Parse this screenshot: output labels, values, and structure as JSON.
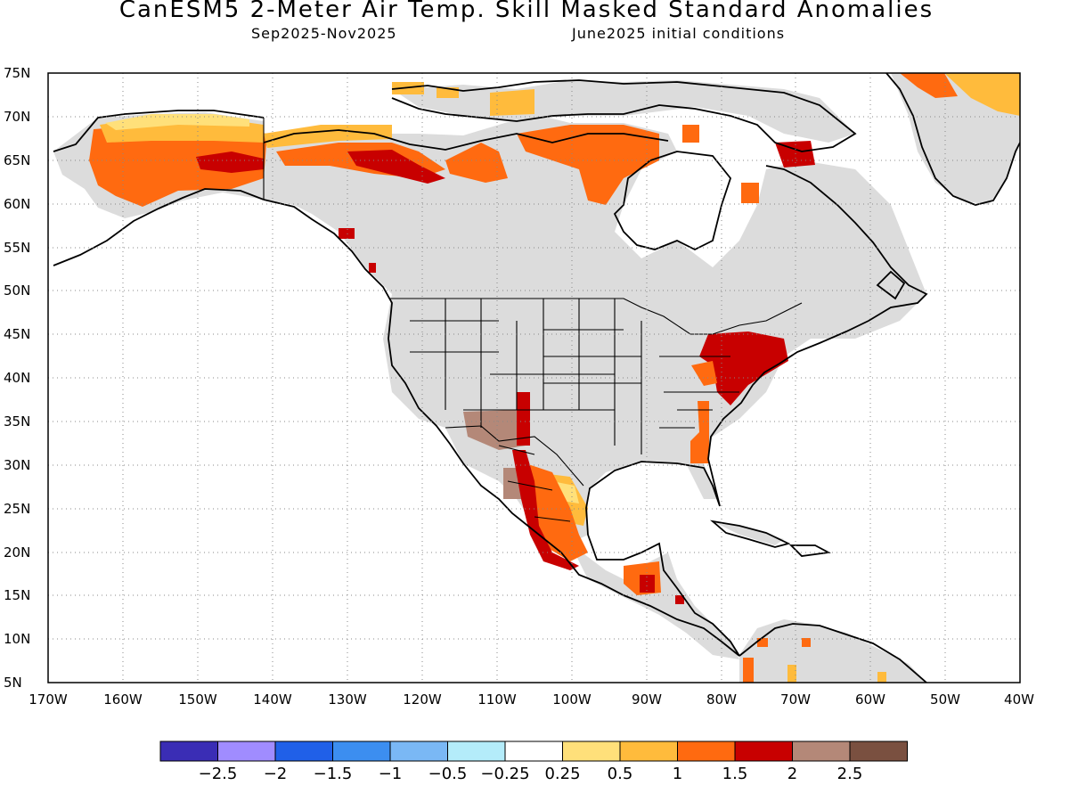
{
  "title": "CanESM5 2-Meter Air Temp. Skill Masked Standard Anomalies",
  "subtitle_left": "Sep2025-Nov2025",
  "subtitle_right": "June2025 initial conditions",
  "map": {
    "lon_range": [
      -170,
      -40
    ],
    "lat_range": [
      5,
      75
    ],
    "lon_ticks": [
      "170W",
      "160W",
      "150W",
      "140W",
      "130W",
      "120W",
      "110W",
      "100W",
      "90W",
      "80W",
      "70W",
      "60W",
      "50W",
      "40W"
    ],
    "lat_ticks": [
      "75N",
      "70N",
      "65N",
      "60N",
      "55N",
      "50N",
      "45N",
      "40N",
      "35N",
      "30N",
      "25N",
      "20N",
      "15N",
      "10N",
      "5N"
    ],
    "grid": true,
    "background_land_color": "#dcdcdc"
  },
  "colorbar": {
    "colors": [
      "#3a2db5",
      "#a08cff",
      "#2060e8",
      "#3c8ef0",
      "#7ab8f5",
      "#b4ecfa",
      "#ffffff",
      "#ffe07a",
      "#ffbb3c",
      "#ff6a10",
      "#c80000",
      "#b48878",
      "#7a5040"
    ],
    "tick_labels": [
      "-2.5",
      "-2",
      "-1.5",
      "-1",
      "-0.5",
      "-0.25",
      "0.25",
      "0.5",
      "1",
      "1.5",
      "2",
      "2.5"
    ]
  },
  "chart_data": {
    "type": "heatmap",
    "title": "CanESM5 2-Meter Air Temp. Skill Masked Standard Anomalies",
    "period": "Sep2025-Nov2025",
    "initial_conditions": "June2025 initial conditions",
    "color_scale_breaks": [
      -2.5,
      -2,
      -1.5,
      -1,
      -0.5,
      -0.25,
      0.25,
      0.5,
      1,
      1.5,
      2,
      2.5
    ],
    "regions": [
      {
        "region": "Alaska interior",
        "anomaly": 1.5
      },
      {
        "region": "Alaska central core",
        "anomaly": 2.0
      },
      {
        "region": "Northern Alaska coast",
        "anomaly": 0.5
      },
      {
        "region": "Yukon / NW Territories",
        "anomaly": 1.0
      },
      {
        "region": "Northern NW Territories",
        "anomaly": 2.0
      },
      {
        "region": "Nunavut / Hudson Bay north",
        "anomaly": 1.5
      },
      {
        "region": "Baffin Island",
        "anomaly": 2.0
      },
      {
        "region": "Greenland east coast",
        "anomaly": 0.5
      },
      {
        "region": "NE United States / Pennsylvania",
        "anomaly": 2.0
      },
      {
        "region": "Mid-Atlantic coast",
        "anomaly": 1.5
      },
      {
        "region": "Southeast coast strip",
        "anomaly": 1.0
      },
      {
        "region": "Southwest US (Arizona/New Mexico)",
        "anomaly": 2.5
      },
      {
        "region": "Mexico Sierra Madre",
        "anomaly": 2.0
      },
      {
        "region": "Northeast Mexico",
        "anomaly": 1.5
      },
      {
        "region": "Southern Mexico / Yucatan",
        "anomaly": 1.5
      },
      {
        "region": "Central America",
        "anomaly": 2.0
      },
      {
        "region": "Northern South America",
        "anomaly": 1.5
      }
    ]
  }
}
